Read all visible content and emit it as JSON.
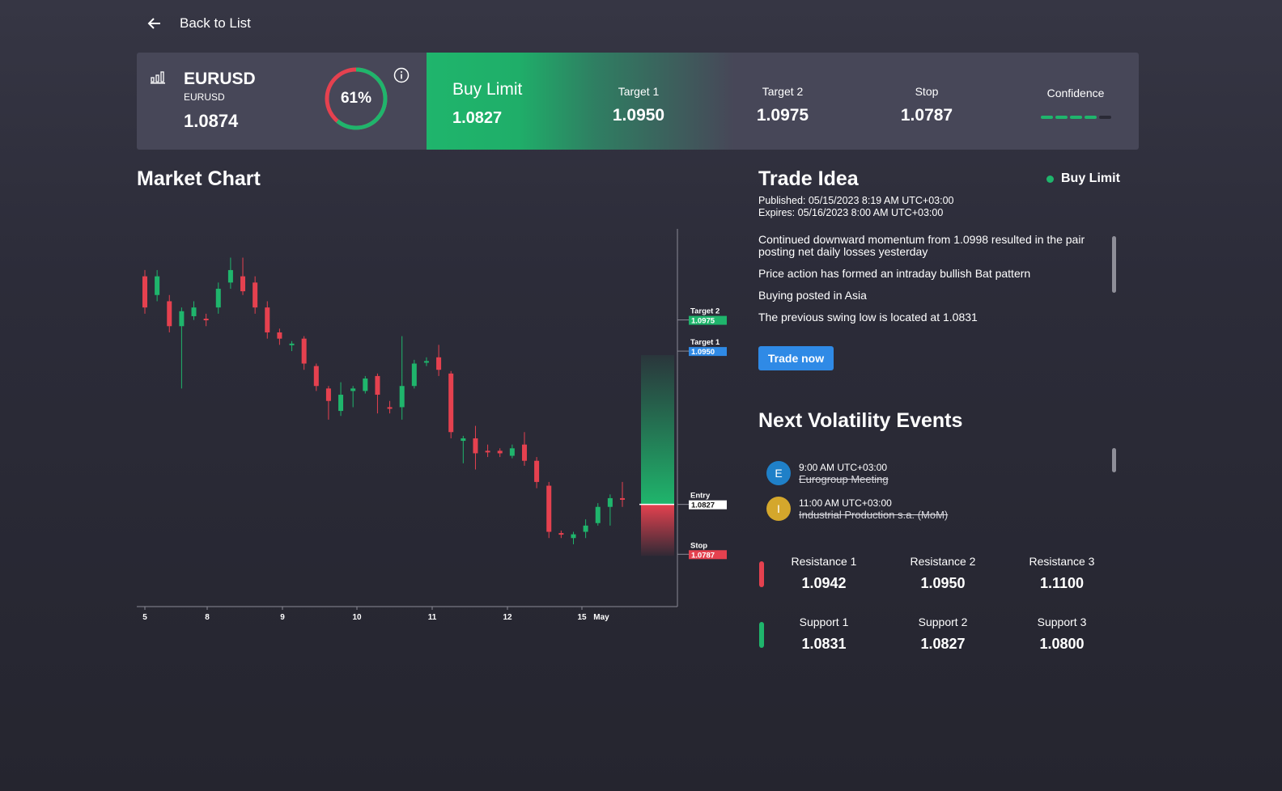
{
  "nav": {
    "back_label": "Back to List"
  },
  "instrument": {
    "name": "EURUSD",
    "sub": "EURUSD",
    "price": "1.0874",
    "sentiment_pct": 61,
    "sentiment_label": "61%"
  },
  "order": {
    "type": "Buy Limit",
    "price": "1.0827"
  },
  "levels": [
    {
      "label": "Target 1",
      "value": "1.0950"
    },
    {
      "label": "Target 2",
      "value": "1.0975"
    },
    {
      "label": "Stop",
      "value": "1.0787"
    }
  ],
  "confidence": {
    "label": "Confidence",
    "filled": 4,
    "total": 5
  },
  "market_chart": {
    "title": "Market Chart"
  },
  "chart_data": {
    "type": "candlestick",
    "x_tick_labels": [
      "5",
      "8",
      "9",
      "10",
      "11",
      "12",
      "15",
      "May"
    ],
    "candles": [
      [
        1.101,
        1.0985,
        1.098,
        1.1015
      ],
      [
        1.0995,
        1.101,
        1.099,
        1.1015
      ],
      [
        1.099,
        1.097,
        1.0965,
        1.0995
      ],
      [
        1.097,
        1.0982,
        1.092,
        1.0985
      ],
      [
        1.0978,
        1.0985,
        1.0975,
        1.099
      ],
      [
        1.0976,
        1.0975,
        1.097,
        1.098
      ],
      [
        1.0985,
        1.1,
        1.098,
        1.1005
      ],
      [
        1.1005,
        1.1015,
        1.1,
        1.1025
      ],
      [
        1.101,
        1.0998,
        1.0995,
        1.1025
      ],
      [
        1.1005,
        1.0985,
        1.098,
        1.101
      ],
      [
        1.0985,
        1.0965,
        1.096,
        1.099
      ],
      [
        1.0965,
        1.096,
        1.0955,
        1.0968
      ],
      [
        1.0955,
        1.0956,
        1.095,
        1.0958
      ],
      [
        1.096,
        1.094,
        1.0935,
        1.0962
      ],
      [
        1.0938,
        1.0922,
        1.0918,
        1.094
      ],
      [
        1.092,
        1.091,
        1.0895,
        1.0922
      ],
      [
        1.0902,
        1.0915,
        1.0898,
        1.0925
      ],
      [
        1.0918,
        1.092,
        1.0905,
        1.0922
      ],
      [
        1.0918,
        1.0928,
        1.0916,
        1.093
      ],
      [
        1.093,
        1.0915,
        1.09,
        1.0932
      ],
      [
        1.0905,
        1.0904,
        1.09,
        1.091
      ],
      [
        1.0905,
        1.0922,
        1.0895,
        1.0962
      ],
      [
        1.0922,
        1.094,
        1.092,
        1.0943
      ],
      [
        1.0941,
        1.0942,
        1.0938,
        1.0945
      ],
      [
        1.0945,
        1.0935,
        1.093,
        1.0955
      ],
      [
        1.0932,
        1.0885,
        1.088,
        1.0934
      ],
      [
        1.0878,
        1.088,
        1.086,
        1.0882
      ],
      [
        1.088,
        1.0868,
        1.0855,
        1.089
      ],
      [
        1.087,
        1.0869,
        1.0865,
        1.0875
      ],
      [
        1.087,
        1.0868,
        1.0865,
        1.0872
      ],
      [
        1.0866,
        1.0872,
        1.0864,
        1.0875
      ],
      [
        1.0875,
        1.0862,
        1.0858,
        1.0885
      ],
      [
        1.0862,
        1.0845,
        1.084,
        1.0865
      ],
      [
        1.0842,
        1.0805,
        1.08,
        1.0845
      ],
      [
        1.0804,
        1.0803,
        1.08,
        1.0806
      ],
      [
        1.08,
        1.0803,
        1.0795,
        1.0805
      ],
      [
        1.0805,
        1.081,
        1.08,
        1.0815
      ],
      [
        1.0812,
        1.0825,
        1.081,
        1.0828
      ],
      [
        1.0825,
        1.0832,
        1.081,
        1.0835
      ],
      [
        1.0832,
        1.0831,
        1.0825,
        1.0845
      ]
    ],
    "y_range": [
      1.0745,
      1.105
    ],
    "levels": [
      {
        "name": "Target 2",
        "value": 1.0975,
        "color": "#1fb56c"
      },
      {
        "name": "Target 1",
        "value": 1.095,
        "color": "#2f8ae6"
      },
      {
        "name": "Entry",
        "value": 1.0827,
        "color": "#ffffff"
      },
      {
        "name": "Stop",
        "value": 1.0787,
        "color": "#e5414f"
      }
    ],
    "level_label_texts": [
      "Target 2",
      "1.0975",
      "Target 1",
      "1.0950",
      "Entry",
      "1.0827",
      "Stop",
      "1.0787"
    ],
    "up_color": "#1fb56c",
    "down_color": "#e5414f",
    "grid": false
  },
  "trade_idea": {
    "title": "Trade Idea",
    "status": "Buy Limit",
    "published_label": "Published:",
    "published": "05/15/2023 8:19 AM UTC+03:00",
    "expires_label": "Expires:",
    "expires": "05/16/2023 8:00 AM UTC+03:00",
    "points": [
      "Continued downward momentum from 1.0998 resulted in the pair posting net daily losses yesterday",
      "Price action has formed an intraday bullish Bat pattern",
      "Buying posted in Asia",
      "The previous swing low is located at 1.0831"
    ],
    "button": "Trade now"
  },
  "volatility": {
    "title": "Next Volatility Events",
    "events": [
      {
        "icon_letter": "E",
        "icon_color": "#1f80c8",
        "time": "9:00 AM UTC+03:00",
        "name": "Eurogroup Meeting"
      },
      {
        "icon_letter": "I",
        "icon_color": "#d4a72c",
        "time": "11:00 AM UTC+03:00",
        "name": "Industrial Production s.a. (MoM)"
      }
    ]
  },
  "resistance": [
    {
      "label": "Resistance 1",
      "value": "1.0942"
    },
    {
      "label": "Resistance 2",
      "value": "1.0950"
    },
    {
      "label": "Resistance 3",
      "value": "1.1100"
    }
  ],
  "support": [
    {
      "label": "Support 1",
      "value": "1.0831"
    },
    {
      "label": "Support 2",
      "value": "1.0827"
    },
    {
      "label": "Support 3",
      "value": "1.0800"
    }
  ],
  "colors": {
    "accent_green": "#1fb56c",
    "accent_red": "#e5414f",
    "accent_blue": "#2f8ae6",
    "card_bg": "#474758"
  }
}
